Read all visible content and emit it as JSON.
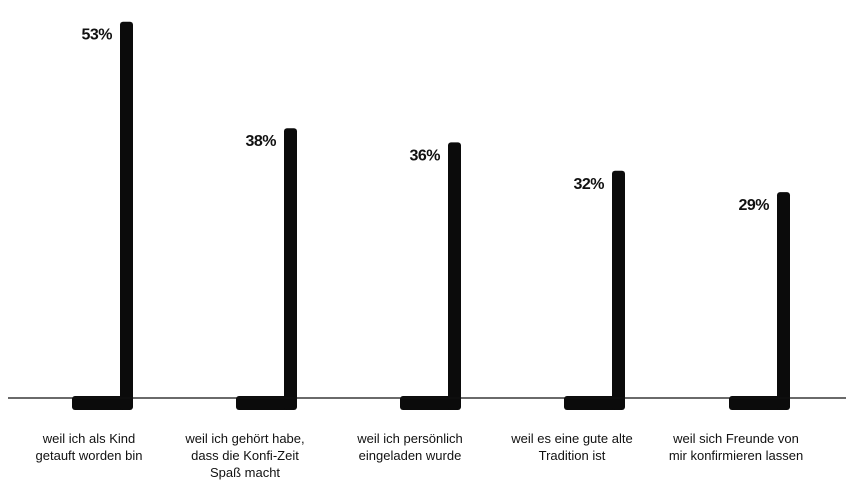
{
  "chart_data": {
    "type": "bar",
    "categories": [
      [
        "weil ich als Kind",
        "getauft worden bin"
      ],
      [
        "weil ich gehört habe,",
        "dass die Konfi-Zeit",
        "Spaß macht"
      ],
      [
        "weil ich persönlich",
        "eingeladen wurde"
      ],
      [
        "weil es eine gute alte",
        "Tradition ist"
      ],
      [
        "weil sich Freunde von",
        "mir konfirmieren lassen"
      ]
    ],
    "values": [
      53,
      38,
      36,
      32,
      29
    ],
    "value_labels": [
      "53%",
      "38%",
      "36%",
      "32%",
      "29%"
    ],
    "title": "",
    "xlabel": "",
    "ylabel": "",
    "ylim": [
      0,
      55
    ],
    "grid": false,
    "colors": {
      "bar": "#0b0b0b",
      "baseline": "#111111",
      "text": "#111111"
    }
  }
}
